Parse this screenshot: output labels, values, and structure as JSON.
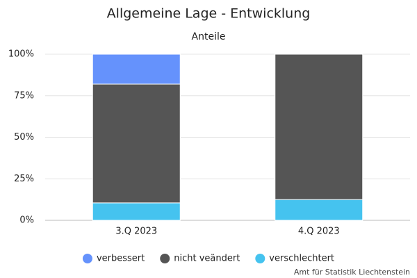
{
  "chart_data": {
    "type": "bar",
    "stacked": true,
    "title": "Allgemeine Lage - Entwicklung",
    "subtitle": "Anteile",
    "categories": [
      "3.Q 2023",
      "4.Q 2023"
    ],
    "series": [
      {
        "name": "verbessert",
        "color": "#6592fc",
        "values": [
          18,
          0
        ]
      },
      {
        "name": "nicht veändert",
        "color": "#555555",
        "values": [
          71.5,
          87.5
        ]
      },
      {
        "name": "verschlechtert",
        "color": "#45c3ef",
        "values": [
          10.5,
          12.5
        ]
      }
    ],
    "ylim": [
      0,
      100
    ],
    "yticks": [
      {
        "value": 0,
        "label": "0%"
      },
      {
        "value": 25,
        "label": "25%"
      },
      {
        "value": 50,
        "label": "50%"
      },
      {
        "value": 75,
        "label": "75%"
      },
      {
        "value": 100,
        "label": "100%"
      }
    ],
    "grid": true,
    "source": "Amt für Statistik Liechtenstein"
  }
}
